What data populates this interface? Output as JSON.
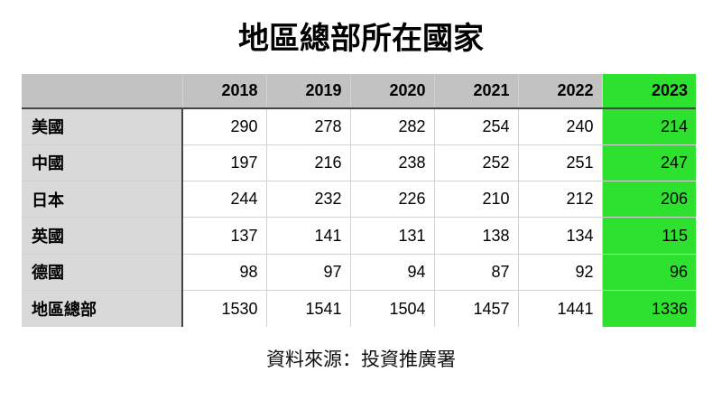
{
  "title": "地區總部所在國家",
  "source_note": "資料來源：投資推廣署",
  "colors": {
    "highlight": "#2fe12f",
    "header_bg": "#c2c2c2",
    "label_bg": "#d9d9d9",
    "grid_light": "#d2d2d2",
    "grid_dark": "#454545"
  },
  "chart_data": {
    "type": "table",
    "title": "地區總部所在國家",
    "columns": [
      "",
      "2018",
      "2019",
      "2020",
      "2021",
      "2022",
      "2023"
    ],
    "highlighted_column": "2023",
    "rows": [
      {
        "label": "美國",
        "values": [
          290,
          278,
          282,
          254,
          240,
          214
        ]
      },
      {
        "label": "中國",
        "values": [
          197,
          216,
          238,
          252,
          251,
          247
        ]
      },
      {
        "label": "日本",
        "values": [
          244,
          232,
          226,
          210,
          212,
          206
        ]
      },
      {
        "label": "英國",
        "values": [
          137,
          141,
          131,
          138,
          134,
          115
        ]
      },
      {
        "label": "德國",
        "values": [
          98,
          97,
          94,
          87,
          92,
          96
        ]
      },
      {
        "label": "地區總部",
        "values": [
          1530,
          1541,
          1504,
          1457,
          1441,
          1336
        ]
      }
    ],
    "source": "資料來源：投資推廣署"
  }
}
